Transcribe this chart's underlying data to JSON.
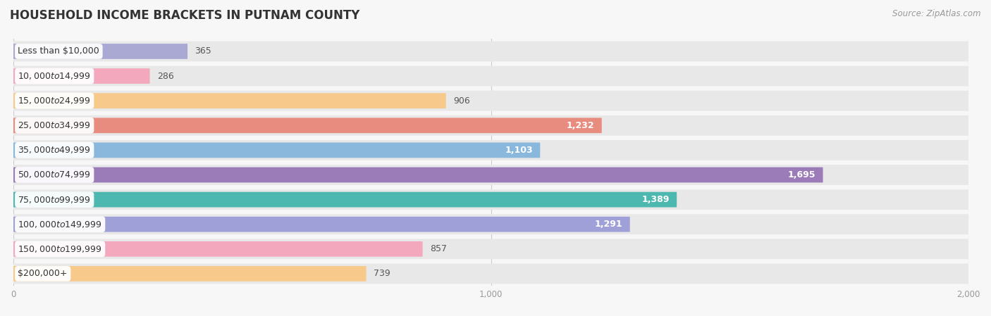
{
  "title": "HOUSEHOLD INCOME BRACKETS IN PUTNAM COUNTY",
  "source": "Source: ZipAtlas.com",
  "categories": [
    "Less than $10,000",
    "$10,000 to $14,999",
    "$15,000 to $24,999",
    "$25,000 to $34,999",
    "$35,000 to $49,999",
    "$50,000 to $74,999",
    "$75,000 to $99,999",
    "$100,000 to $149,999",
    "$150,000 to $199,999",
    "$200,000+"
  ],
  "values": [
    365,
    286,
    906,
    1232,
    1103,
    1695,
    1389,
    1291,
    857,
    739
  ],
  "bar_colors": [
    "#a9a9d4",
    "#f4a8be",
    "#f7c98a",
    "#e88c80",
    "#8ab8dc",
    "#9b7bb8",
    "#4db8b0",
    "#a0a0d8",
    "#f4a8be",
    "#f7c98a"
  ],
  "value_inside": [
    false,
    false,
    false,
    true,
    true,
    true,
    true,
    true,
    false,
    false
  ],
  "xlim": [
    0,
    2000
  ],
  "background_color": "#f7f7f7",
  "row_bg_color": "#e8e8e8",
  "title_fontsize": 12,
  "label_fontsize": 9,
  "value_fontsize": 9,
  "source_fontsize": 8.5
}
